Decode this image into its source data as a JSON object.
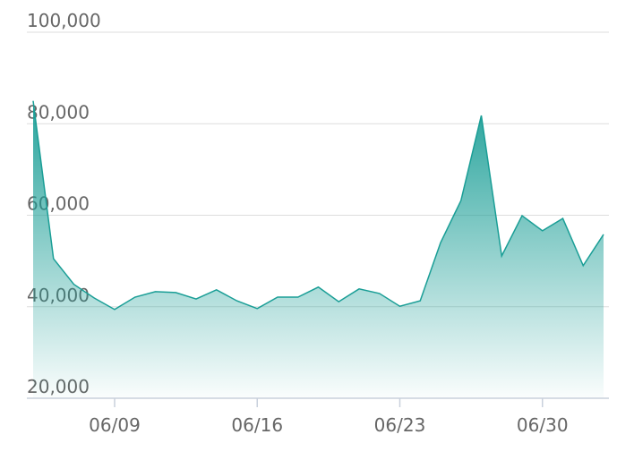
{
  "chart_data": {
    "type": "area",
    "categories": [
      null,
      null,
      null,
      null,
      "06/09",
      null,
      null,
      null,
      null,
      null,
      null,
      "06/16",
      null,
      null,
      null,
      null,
      null,
      null,
      "06/23",
      null,
      null,
      null,
      null,
      null,
      null,
      "06/30",
      null,
      null,
      null
    ],
    "values": [
      85000,
      50500,
      44900,
      41900,
      39400,
      42100,
      43300,
      43100,
      41700,
      43700,
      41300,
      39600,
      42100,
      42100,
      44300,
      41100,
      43900,
      42900,
      40100,
      41300,
      54000,
      63200,
      81800,
      51100,
      59900,
      56600,
      59300,
      49000,
      55800
    ],
    "color": "#1a9e96",
    "ylim": [
      20000,
      100000
    ],
    "yticks": [
      {
        "value": 20000,
        "label": "20,000"
      },
      {
        "value": 40000,
        "label": "40,000"
      },
      {
        "value": 60000,
        "label": "60,000"
      },
      {
        "value": 80000,
        "label": "80,000"
      },
      {
        "value": 100000,
        "label": "100,000"
      }
    ],
    "grid": true
  }
}
